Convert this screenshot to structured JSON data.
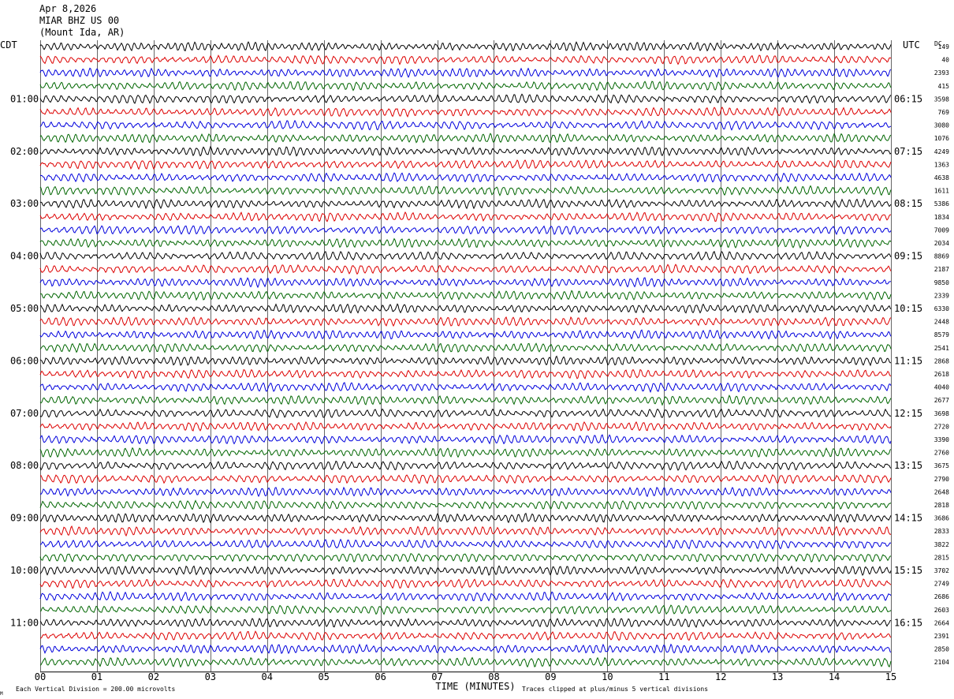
{
  "header": {
    "date": "Apr 8,2026",
    "channel": "MIAR BHZ US 00",
    "location": "(Mount Ida, AR)"
  },
  "left_tz": "CDT",
  "right_tz": "UTC",
  "dc_label": "DC",
  "footer": {
    "scale_note": "Each Vertical Division =  200.00 microvolts",
    "clip_note": "Traces clipped at plus/minus 5 vertical divisions",
    "corner_mark": "M"
  },
  "colors": {
    "trace_cycle": [
      "#000000",
      "#dd0000",
      "#0000dd",
      "#006600"
    ],
    "grid": "#000000",
    "background": "#ffffff"
  },
  "chart_data": {
    "type": "line",
    "subtype": "helicorder",
    "xlabel": "TIME (MINUTES)",
    "x_range": [
      0,
      15
    ],
    "x_ticks": [
      "00",
      "01",
      "02",
      "03",
      "04",
      "05",
      "06",
      "07",
      "08",
      "09",
      "10",
      "11",
      "12",
      "13",
      "14",
      "15"
    ],
    "minutes_per_line": 15,
    "num_lines": 48,
    "left_hour_labels": [
      {
        "line": 4,
        "label": "01:00"
      },
      {
        "line": 8,
        "label": "02:00"
      },
      {
        "line": 12,
        "label": "03:00"
      },
      {
        "line": 16,
        "label": "04:00"
      },
      {
        "line": 20,
        "label": "05:00"
      },
      {
        "line": 24,
        "label": "06:00"
      },
      {
        "line": 28,
        "label": "07:00"
      },
      {
        "line": 32,
        "label": "08:00"
      },
      {
        "line": 36,
        "label": "09:00"
      },
      {
        "line": 40,
        "label": "10:00"
      },
      {
        "line": 44,
        "label": "11:00"
      }
    ],
    "right_hour_labels": [
      {
        "line": 4,
        "label": "06:15"
      },
      {
        "line": 8,
        "label": "07:15"
      },
      {
        "line": 12,
        "label": "08:15"
      },
      {
        "line": 16,
        "label": "09:15"
      },
      {
        "line": 20,
        "label": "10:15"
      },
      {
        "line": 24,
        "label": "11:15"
      },
      {
        "line": 28,
        "label": "12:15"
      },
      {
        "line": 32,
        "label": "13:15"
      },
      {
        "line": 36,
        "label": "14:15"
      },
      {
        "line": 40,
        "label": "15:15"
      },
      {
        "line": 44,
        "label": "16:15"
      }
    ],
    "dc_offsets": [
      "149",
      "40",
      "2393",
      "415",
      "3598",
      "769",
      "3080",
      "1076",
      "4249",
      "1363",
      "4638",
      "1611",
      "5386",
      "1834",
      "7009",
      "2034",
      "8869",
      "2187",
      "9850",
      "2339",
      "6330",
      "2448",
      "8579",
      "2541",
      "2868",
      "2618",
      "4040",
      "2677",
      "3698",
      "2720",
      "3390",
      "2760",
      "3675",
      "2790",
      "2648",
      "2818",
      "3686",
      "2833",
      "3822",
      "2815",
      "3702",
      "2749",
      "2686",
      "2603",
      "2664",
      "2391",
      "2850",
      "2104"
    ],
    "scale_microvolts_per_division": 200.0,
    "clip_divisions": 5
  }
}
